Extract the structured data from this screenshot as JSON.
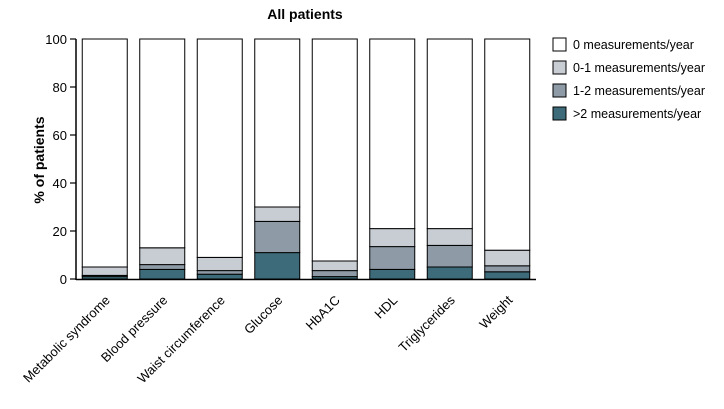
{
  "chart_data": {
    "type": "bar",
    "stacked": true,
    "percent_stacked": true,
    "title": "All patients",
    "ylabel": "% of patients",
    "xlabel": "",
    "ylim": [
      0,
      100
    ],
    "yticks": [
      0,
      20,
      40,
      60,
      80,
      100
    ],
    "grid": false,
    "legend_position": "right",
    "categories": [
      "Metabolic syndrome",
      "Blood pressure",
      "Waist circumference",
      "Glucose",
      "HbA1C",
      "HDL",
      "Triglycerides",
      "Weight"
    ],
    "series": [
      {
        "name": ">2 measurements/year",
        "color": "#3d6b79",
        "values": [
          1,
          4,
          2,
          11,
          1,
          4,
          5,
          3
        ]
      },
      {
        "name": "1-2 measurements/year",
        "color": "#8e9ba6",
        "values": [
          0.5,
          2,
          1.5,
          13,
          2.5,
          9.5,
          9,
          2.5
        ]
      },
      {
        "name": "0-1 measurements/year",
        "color": "#c7cdd3",
        "values": [
          3.5,
          7,
          5.5,
          6,
          4,
          7.5,
          7,
          6.5
        ]
      },
      {
        "name": "0 measurements/year",
        "color": "#ffffff",
        "values": [
          95,
          87,
          91,
          70,
          92.5,
          79,
          79,
          88
        ]
      }
    ],
    "legend_order": [
      "0 measurements/year",
      "0-1 measurements/year",
      "1-2 measurements/year",
      ">2 measurements/year"
    ]
  }
}
